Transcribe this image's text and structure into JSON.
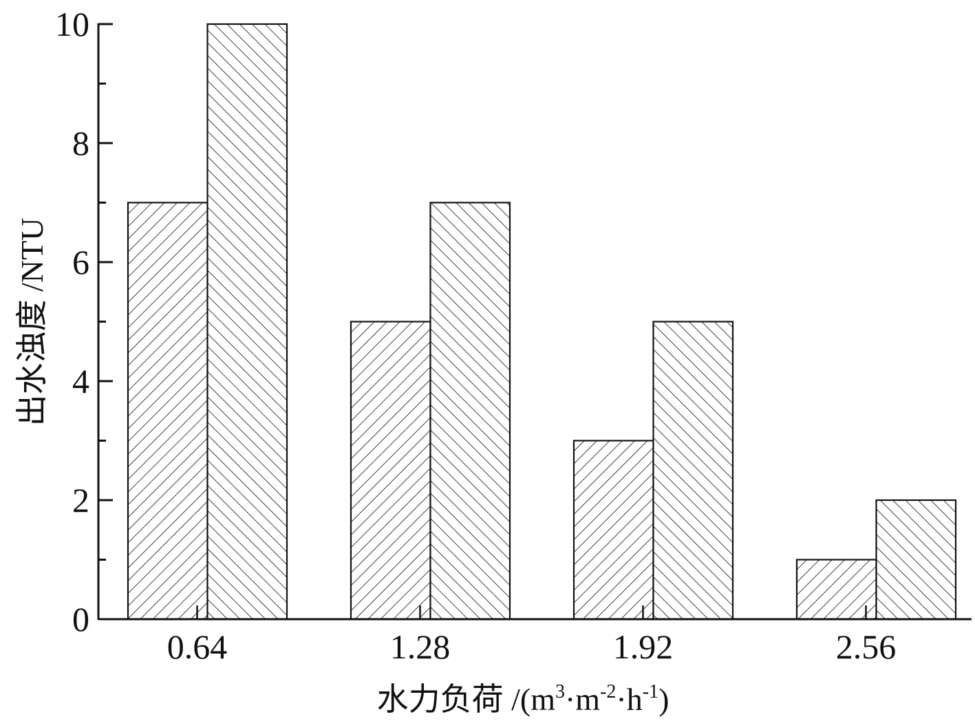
{
  "chart_data": {
    "type": "bar",
    "title": "",
    "xlabel": "水力负荷 /(m³·m⁻²·h⁻¹)",
    "xlabel_parts": {
      "prefix": "水力负荷 /(m",
      "sup1": "3",
      "mid1": "·m",
      "sup2": "-2",
      "mid2": "·h",
      "sup3": "-1",
      "suffix": ")"
    },
    "ylabel": "出水浊度 /NTU",
    "categories": [
      "0.64",
      "1.28",
      "1.92",
      "2.56"
    ],
    "series": [
      {
        "name": "series-1 (forward-hatch)",
        "pattern": "hatch-forward",
        "values": [
          7,
          5,
          3,
          1
        ]
      },
      {
        "name": "series-2 (back-hatch)",
        "pattern": "hatch-back",
        "values": [
          10,
          7,
          5,
          2
        ]
      }
    ],
    "ylim": [
      0,
      10
    ],
    "yticks_major": [
      0,
      2,
      4,
      6,
      8,
      10
    ],
    "yticks_minor": [
      1,
      3,
      5,
      7,
      9
    ],
    "grid": false,
    "legend": null,
    "colors": {
      "stroke": "#111111",
      "fill": "#ffffff"
    }
  }
}
